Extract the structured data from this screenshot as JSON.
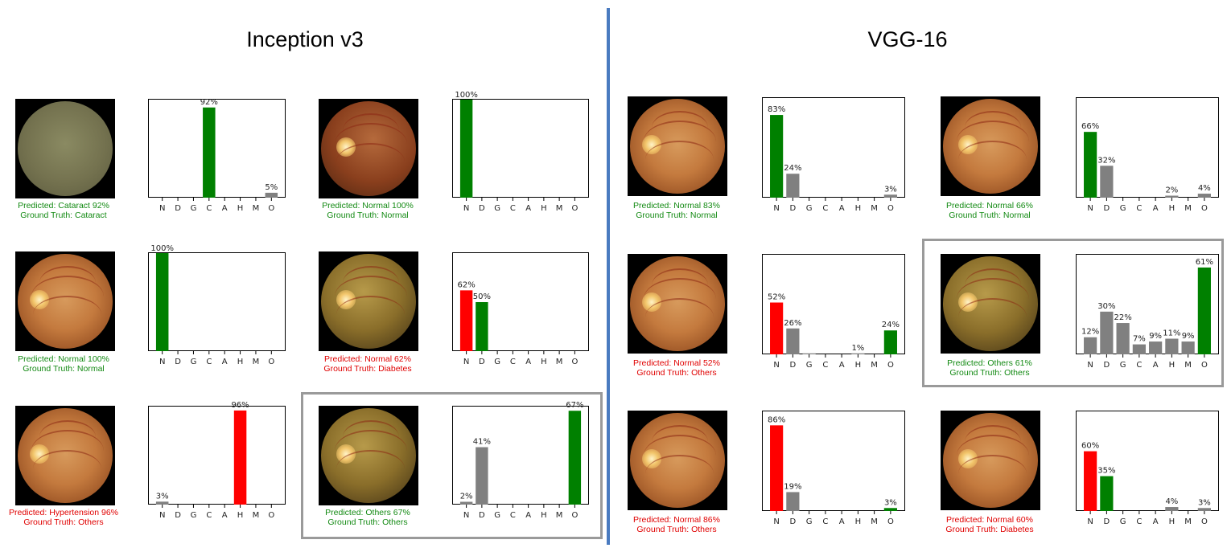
{
  "titles": {
    "left": "Inception v3",
    "right": "VGG-16"
  },
  "colors": {
    "correct": "#008000",
    "wrong": "#ff0000",
    "other": "#808080",
    "divider": "#4a7bc0"
  },
  "categories": [
    "N",
    "D",
    "G",
    "C",
    "A",
    "H",
    "M",
    "O"
  ],
  "panels": [
    {
      "model": "Inception v3",
      "fundus": "cataract",
      "predicted": "Predicted: Cataract 92%",
      "truth": "Ground Truth: Cataract",
      "status": "correct"
    },
    {
      "model": "Inception v3",
      "fundus": "dark",
      "predicted": "Predicted: Normal 100%",
      "truth": "Ground Truth: Normal",
      "status": "correct"
    },
    {
      "model": "Inception v3",
      "fundus": "normal",
      "predicted": "Predicted: Normal 100%",
      "truth": "Ground Truth: Normal",
      "status": "correct"
    },
    {
      "model": "Inception v3",
      "fundus": "olive",
      "predicted": "Predicted: Normal 62%",
      "truth": "Ground Truth: Diabetes",
      "status": "wrong"
    },
    {
      "model": "Inception v3",
      "fundus": "normal",
      "predicted": "Predicted: Hypertension 96%",
      "truth": "Ground Truth: Others",
      "status": "wrong"
    },
    {
      "model": "Inception v3",
      "fundus": "olive",
      "predicted": "Predicted: Others 67%",
      "truth": "Ground Truth: Others",
      "status": "correct"
    },
    {
      "model": "VGG-16",
      "fundus": "normal",
      "predicted": "Predicted: Normal 83%",
      "truth": "Ground Truth: Normal",
      "status": "correct"
    },
    {
      "model": "VGG-16",
      "fundus": "normal",
      "predicted": "Predicted: Normal 66%",
      "truth": "Ground Truth: Normal",
      "status": "correct"
    },
    {
      "model": "VGG-16",
      "fundus": "normal",
      "predicted": "Predicted: Normal 52%",
      "truth": "Ground Truth: Others",
      "status": "wrong"
    },
    {
      "model": "VGG-16",
      "fundus": "olive",
      "predicted": "Predicted: Others 61%",
      "truth": "Ground Truth: Others",
      "status": "correct"
    },
    {
      "model": "VGG-16",
      "fundus": "normal",
      "predicted": "Predicted: Normal 86%",
      "truth": "Ground Truth: Others",
      "status": "wrong"
    },
    {
      "model": "VGG-16",
      "fundus": "normal",
      "predicted": "Predicted: Normal 60%",
      "truth": "Ground Truth: Diabetes",
      "status": "wrong"
    }
  ],
  "chart_data": [
    {
      "type": "bar",
      "model": "Inception v3",
      "categories": [
        "N",
        "D",
        "G",
        "C",
        "A",
        "H",
        "M",
        "O"
      ],
      "values": [
        0,
        0,
        0,
        92,
        0,
        0,
        0,
        5
      ],
      "labels": [
        "",
        "",
        "",
        "92%",
        "",
        "",
        "",
        "5%"
      ],
      "bar_colors": [
        "other",
        "other",
        "other",
        "correct",
        "other",
        "other",
        "other",
        "other"
      ],
      "ylim": [
        0,
        100
      ]
    },
    {
      "type": "bar",
      "model": "Inception v3",
      "categories": [
        "N",
        "D",
        "G",
        "C",
        "A",
        "H",
        "M",
        "O"
      ],
      "values": [
        100,
        0,
        0,
        0,
        0,
        0,
        0,
        0
      ],
      "labels": [
        "100%",
        "",
        "",
        "",
        "",
        "",
        "",
        ""
      ],
      "bar_colors": [
        "correct",
        "other",
        "other",
        "other",
        "other",
        "other",
        "other",
        "other"
      ],
      "ylim": [
        0,
        100
      ]
    },
    {
      "type": "bar",
      "model": "Inception v3",
      "categories": [
        "N",
        "D",
        "G",
        "C",
        "A",
        "H",
        "M",
        "O"
      ],
      "values": [
        100,
        0,
        0,
        0,
        0,
        0,
        0,
        0
      ],
      "labels": [
        "100%",
        "",
        "",
        "",
        "",
        "",
        "",
        ""
      ],
      "bar_colors": [
        "correct",
        "other",
        "other",
        "other",
        "other",
        "other",
        "other",
        "other"
      ],
      "ylim": [
        0,
        100
      ]
    },
    {
      "type": "bar",
      "model": "Inception v3",
      "categories": [
        "N",
        "D",
        "G",
        "C",
        "A",
        "H",
        "M",
        "O"
      ],
      "values": [
        62,
        50,
        0,
        0,
        0,
        0,
        0,
        0
      ],
      "labels": [
        "62%",
        "50%",
        "",
        "",
        "",
        "",
        "",
        ""
      ],
      "bar_colors": [
        "wrong",
        "correct",
        "other",
        "other",
        "other",
        "other",
        "other",
        "other"
      ],
      "ylim": [
        0,
        100
      ]
    },
    {
      "type": "bar",
      "model": "Inception v3",
      "categories": [
        "N",
        "D",
        "G",
        "C",
        "A",
        "H",
        "M",
        "O"
      ],
      "values": [
        3,
        0,
        0,
        0,
        0,
        96,
        0,
        0
      ],
      "labels": [
        "3%",
        "",
        "",
        "",
        "",
        "96%",
        "",
        ""
      ],
      "bar_colors": [
        "other",
        "other",
        "other",
        "other",
        "other",
        "wrong",
        "other",
        "other"
      ],
      "ylim": [
        0,
        100
      ]
    },
    {
      "type": "bar",
      "model": "Inception v3",
      "categories": [
        "N",
        "D",
        "G",
        "C",
        "A",
        "H",
        "M",
        "O"
      ],
      "values": [
        2,
        41,
        0,
        0,
        0,
        0,
        0,
        67
      ],
      "labels": [
        "2%",
        "41%",
        "",
        "",
        "",
        "",
        "",
        "67%"
      ],
      "bar_colors": [
        "other",
        "other",
        "other",
        "other",
        "other",
        "other",
        "other",
        "correct"
      ],
      "ylim": [
        0,
        70
      ]
    },
    {
      "type": "bar",
      "model": "VGG-16",
      "categories": [
        "N",
        "D",
        "G",
        "C",
        "A",
        "H",
        "M",
        "O"
      ],
      "values": [
        83,
        24,
        0,
        0,
        0,
        0,
        0,
        3
      ],
      "labels": [
        "83%",
        "24%",
        "",
        "",
        "",
        "",
        "",
        "3%"
      ],
      "bar_colors": [
        "correct",
        "other",
        "other",
        "other",
        "other",
        "other",
        "other",
        "other"
      ],
      "ylim": [
        0,
        100
      ]
    },
    {
      "type": "bar",
      "model": "VGG-16",
      "categories": [
        "N",
        "D",
        "G",
        "C",
        "A",
        "H",
        "M",
        "O"
      ],
      "values": [
        66,
        32,
        0,
        0,
        0,
        2,
        0,
        4
      ],
      "labels": [
        "66%",
        "32%",
        "",
        "",
        "",
        "2%",
        "",
        "4%"
      ],
      "bar_colors": [
        "correct",
        "other",
        "other",
        "other",
        "other",
        "other",
        "other",
        "other"
      ],
      "ylim": [
        0,
        100
      ]
    },
    {
      "type": "bar",
      "model": "VGG-16",
      "categories": [
        "N",
        "D",
        "G",
        "C",
        "A",
        "H",
        "M",
        "O"
      ],
      "values": [
        52,
        26,
        1,
        0,
        0,
        1,
        0,
        24
      ],
      "labels": [
        "52%",
        "26%",
        "",
        "",
        "",
        "1%",
        "",
        "24%"
      ],
      "bar_colors": [
        "wrong",
        "other",
        "other",
        "other",
        "other",
        "other",
        "other",
        "correct"
      ],
      "ylim": [
        0,
        100
      ]
    },
    {
      "type": "bar",
      "model": "VGG-16",
      "categories": [
        "N",
        "D",
        "G",
        "C",
        "A",
        "H",
        "M",
        "O"
      ],
      "values": [
        12,
        30,
        22,
        7,
        9,
        11,
        9,
        61
      ],
      "labels": [
        "12%",
        "30%",
        "22%",
        "7%",
        "9%",
        "11%",
        "9%",
        "61%"
      ],
      "bar_colors": [
        "other",
        "other",
        "other",
        "other",
        "other",
        "other",
        "other",
        "correct"
      ],
      "ylim": [
        0,
        70
      ]
    },
    {
      "type": "bar",
      "model": "VGG-16",
      "categories": [
        "N",
        "D",
        "G",
        "C",
        "A",
        "H",
        "M",
        "O"
      ],
      "values": [
        86,
        19,
        0,
        0,
        0,
        0,
        0,
        3
      ],
      "labels": [
        "86%",
        "19%",
        "",
        "",
        "",
        "",
        "",
        "3%"
      ],
      "bar_colors": [
        "wrong",
        "other",
        "other",
        "other",
        "other",
        "other",
        "other",
        "correct"
      ],
      "ylim": [
        0,
        100
      ]
    },
    {
      "type": "bar",
      "model": "VGG-16",
      "categories": [
        "N",
        "D",
        "G",
        "C",
        "A",
        "H",
        "M",
        "O"
      ],
      "values": [
        60,
        35,
        0,
        0,
        0,
        4,
        0,
        3
      ],
      "labels": [
        "60%",
        "35%",
        "",
        "",
        "",
        "4%",
        "",
        "3%"
      ],
      "bar_colors": [
        "wrong",
        "correct",
        "other",
        "other",
        "other",
        "other",
        "other",
        "other"
      ],
      "ylim": [
        0,
        100
      ]
    }
  ]
}
